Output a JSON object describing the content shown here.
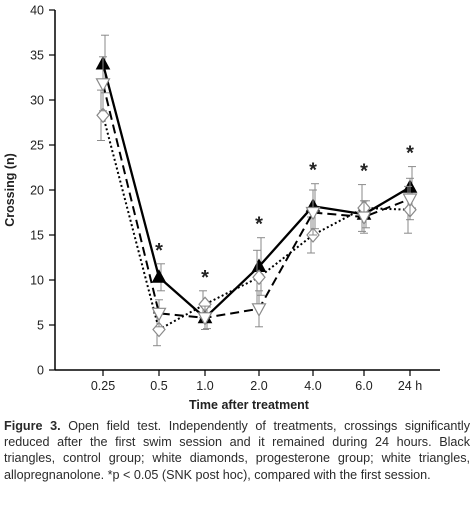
{
  "chart_data": {
    "type": "line",
    "title": "",
    "xlabel": "Time after treatment",
    "ylabel": "Crossing (n)",
    "categories": [
      "0.25",
      "0.5",
      "1.0",
      "2.0",
      "4.0",
      "6.0",
      "24 h"
    ],
    "ylim": [
      0,
      40
    ],
    "yticks": [
      "0",
      "5",
      "10",
      "15",
      "20",
      "25",
      "30",
      "35",
      "40"
    ],
    "grid": false,
    "series": [
      {
        "marker": "filled-triangle-up",
        "line": "solid",
        "color": "#000000",
        "values": [
          34.0,
          10.3,
          5.8,
          11.5,
          18.2,
          17.3,
          20.3
        ],
        "errors": [
          3.2,
          1.5,
          1.2,
          3.2,
          2.5,
          1.5,
          2.3
        ]
      },
      {
        "marker": "open-diamond",
        "line": "dotted",
        "color": "#000000",
        "values": [
          28.3,
          4.5,
          7.3,
          10.3,
          15.0,
          18.0,
          17.8
        ],
        "errors": [
          2.8,
          1.8,
          1.5,
          3.0,
          2.0,
          2.6,
          2.6
        ]
      },
      {
        "marker": "open-triangle-down",
        "line": "dashed",
        "color": "#000000",
        "values": [
          31.8,
          6.3,
          5.8,
          6.8,
          17.5,
          17.0,
          19.0
        ],
        "errors": [
          3.0,
          1.5,
          1.3,
          2.0,
          2.5,
          1.8,
          2.3
        ]
      }
    ],
    "annotations": [
      {
        "category": "0.5",
        "text": "*"
      },
      {
        "category": "1.0",
        "text": "*"
      },
      {
        "category": "2.0",
        "text": "*"
      },
      {
        "category": "4.0",
        "text": "*"
      },
      {
        "category": "6.0",
        "text": "*"
      },
      {
        "category": "24 h",
        "text": "*"
      }
    ]
  },
  "caption": {
    "label": "Figure 3.",
    "text": "Open field test. Independently of treatments, crossings significantly reduced after the first swim session and it remained during 24 hours. Black triangles, control group; white diamonds, progesterone group; white triangles, allopregnanolone. *p < 0.05 (SNK post hoc), compared with the first session."
  }
}
